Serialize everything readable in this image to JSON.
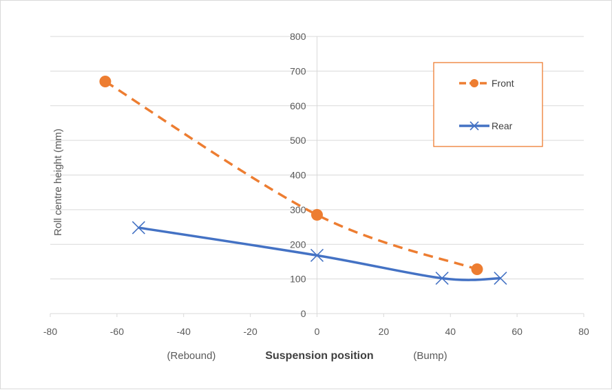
{
  "chart_data": {
    "type": "line",
    "title": "",
    "xlabel": "Suspension position",
    "xlabel_left_annotation": "(Rebound)",
    "xlabel_right_annotation": "(Bump)",
    "ylabel": "Roll centre height (mm)",
    "xlim": [
      -80,
      80
    ],
    "ylim": [
      0,
      800
    ],
    "xticks": [
      -80,
      -60,
      -40,
      -20,
      0,
      20,
      40,
      60,
      80
    ],
    "yticks": [
      0,
      100,
      200,
      300,
      400,
      500,
      600,
      700,
      800
    ],
    "grid": "horizontal",
    "legend_position": "top-right",
    "series": [
      {
        "name": "Front",
        "color": "#ED7D31",
        "line_style": "dashed",
        "marker": "circle",
        "x": [
          -63.5,
          0,
          48
        ],
        "y": [
          670,
          285,
          128
        ]
      },
      {
        "name": "Rear",
        "color": "#4472C4",
        "line_style": "solid",
        "marker": "x",
        "x": [
          -53.5,
          0,
          37.5,
          55
        ],
        "y": [
          248,
          168,
          102,
          102
        ]
      }
    ]
  }
}
